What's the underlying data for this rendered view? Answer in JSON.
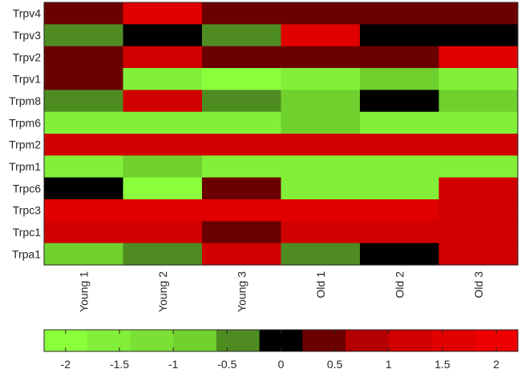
{
  "chart_data": {
    "type": "heatmap",
    "rows": [
      "Trpv4",
      "Trpv3",
      "Trpv2",
      "Trpv1",
      "Trpm8",
      "Trpm6",
      "Trpm2",
      "Trpm1",
      "Trpc6",
      "Trpc3",
      "Trpc1",
      "Trpa1"
    ],
    "columns": [
      "Young 1",
      "Young 2",
      "Young 3",
      "Old 1",
      "Old 2",
      "Old 3"
    ],
    "values": [
      [
        0.5,
        1.5,
        0.5,
        0.5,
        0.5,
        0.5
      ],
      [
        -0.5,
        0,
        -0.5,
        1.5,
        0,
        0
      ],
      [
        0.5,
        1,
        0.5,
        0.5,
        0.5,
        1.5
      ],
      [
        0.5,
        -1.5,
        -2,
        -1.5,
        -1,
        -1.5
      ],
      [
        -0.5,
        1,
        -0.5,
        -1,
        0,
        -1
      ],
      [
        -1.5,
        -1.5,
        -1.5,
        -1,
        -1.5,
        -1.5
      ],
      [
        1,
        1,
        1,
        1,
        1,
        1
      ],
      [
        -1.5,
        -1,
        -1.5,
        -1.5,
        -1.5,
        -1.5
      ],
      [
        0,
        -2,
        0.5,
        -1.5,
        -1.5,
        1
      ],
      [
        1.5,
        1.5,
        1.5,
        1.5,
        1.5,
        1
      ],
      [
        1,
        1,
        0.5,
        1,
        1,
        1
      ],
      [
        -1,
        -0.5,
        1,
        -0.5,
        0,
        1
      ]
    ],
    "colorbar": {
      "ticks": [
        -2,
        -1.5,
        -1,
        -0.5,
        0,
        0.5,
        1,
        1.5,
        2
      ],
      "tick_labels": [
        "-2",
        "-1.5",
        "-1",
        "-0.5",
        "0",
        "0.5",
        "1",
        "1.5",
        "2"
      ],
      "range": [
        -2.2,
        2.2
      ],
      "colors": [
        "#8aff3c",
        "#82f038",
        "#7ae034",
        "#70d02e",
        "#4e8c22",
        "#000000",
        "#6b0000",
        "#b40000",
        "#d00000",
        "#e00000",
        "#ee0000"
      ]
    },
    "xlabel": "",
    "ylabel": "",
    "title": ""
  }
}
